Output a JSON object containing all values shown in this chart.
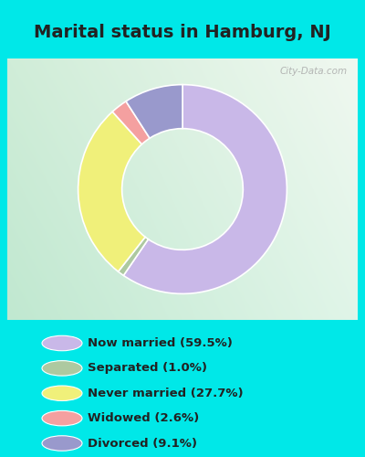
{
  "title": "Marital status in Hamburg, NJ",
  "slices": [
    {
      "label": "Now married (59.5%)",
      "value": 59.5,
      "color": "#c9b8e8"
    },
    {
      "label": "Separated (1.0%)",
      "value": 1.0,
      "color": "#adc9a0"
    },
    {
      "label": "Never married (27.7%)",
      "value": 27.7,
      "color": "#f0f07a"
    },
    {
      "label": "Widowed (2.6%)",
      "value": 2.6,
      "color": "#f4a0a0"
    },
    {
      "label": "Divorced (9.1%)",
      "value": 9.1,
      "color": "#9999cc"
    }
  ],
  "cyan_bg": "#00e8e8",
  "chart_bg_tl": "#d8f0e0",
  "chart_bg_br": "#e8f8f0",
  "watermark": "City-Data.com",
  "title_fontsize": 14,
  "legend_fontsize": 9.5,
  "donut_width": 0.42,
  "title_color": "#222222",
  "legend_text_color": "#222222"
}
